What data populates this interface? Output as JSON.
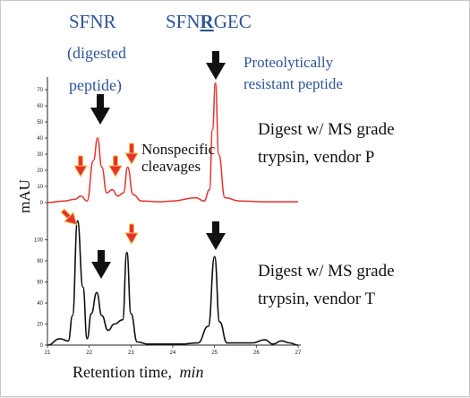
{
  "chart_data": {
    "type": "line",
    "ylabel": "mAU",
    "xlabel": "Retention time,",
    "xlabel_unit": "min",
    "x_ticks": [
      "21",
      "22",
      "23",
      "24",
      "25",
      "26",
      "27"
    ],
    "xlim": [
      21,
      27
    ],
    "y_ticks_top": [
      "70",
      "60",
      "50",
      "40",
      "30",
      "20",
      "10",
      "0"
    ],
    "ylim_top": [
      0,
      75
    ],
    "y_ticks_bottom": [
      "100",
      "80",
      "60",
      "40",
      "20",
      "0"
    ],
    "ylim_bottom": [
      0,
      120
    ],
    "series": [
      {
        "name": "Digest w/ MS grade trypsin, vendor P",
        "color": "#e8312f",
        "x": [
          21.0,
          21.4,
          21.65,
          21.8,
          21.95,
          22.1,
          22.2,
          22.3,
          22.42,
          22.55,
          22.68,
          22.82,
          22.92,
          23.05,
          23.25,
          23.7,
          24.0,
          24.55,
          24.75,
          24.88,
          24.95,
          25.02,
          25.1,
          25.25,
          25.6,
          26.2,
          26.6,
          27.0
        ],
        "y": [
          0,
          1,
          2,
          4,
          1,
          26,
          40,
          22,
          6,
          8,
          4,
          6,
          22,
          5,
          1,
          0.5,
          1,
          3,
          1,
          8,
          45,
          74,
          30,
          3,
          1,
          0.5,
          0.5,
          0.5
        ]
      },
      {
        "name": "Digest w/ MS grade trypsin, vendor T",
        "color": "#111111",
        "x": [
          21.0,
          21.3,
          21.5,
          21.6,
          21.72,
          21.85,
          21.95,
          22.05,
          22.18,
          22.3,
          22.45,
          22.6,
          22.8,
          22.9,
          23.0,
          23.15,
          23.4,
          23.8,
          24.2,
          24.6,
          24.85,
          25.0,
          25.12,
          25.3,
          25.6,
          25.9,
          26.2,
          26.4,
          26.6,
          26.8,
          27.0
        ],
        "y": [
          0,
          6,
          4,
          28,
          118,
          55,
          6,
          30,
          50,
          28,
          14,
          20,
          24,
          88,
          30,
          3,
          1,
          1,
          1,
          2,
          18,
          84,
          22,
          2,
          2,
          2,
          5,
          1,
          4,
          2,
          0
        ]
      }
    ],
    "annotations": {
      "label_sfnr": "SFNR",
      "label_digested": "(digested",
      "label_peptide": "peptide)",
      "label_sfnrgec_a": "SFN",
      "label_sfnrgec_b": "R",
      "label_sfnrgec_c": "GEC",
      "label_resistant_1": "Proteolytically",
      "label_resistant_2": "resistant peptide",
      "label_nonspecific_1": "Nonspecific",
      "label_nonspecific_2": "cleavages",
      "label_vendor_p_1": "Digest w/ MS grade",
      "label_vendor_p_2": "trypsin, vendor P",
      "label_vendor_t_1": "Digest w/ MS grade",
      "label_vendor_t_2": "trypsin, vendor T"
    },
    "colors": {
      "annotation_blue": "#2f5496",
      "red_arrow": "#e8312f",
      "red_arrow_outline": "#f3c04c"
    }
  }
}
